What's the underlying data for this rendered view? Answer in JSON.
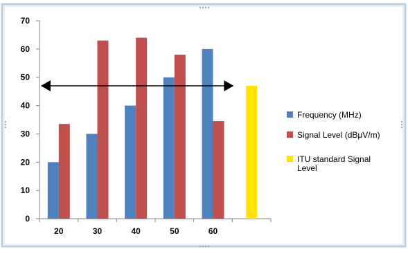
{
  "chart_data": {
    "type": "bar",
    "categories": [
      "20",
      "30",
      "40",
      "50",
      "60",
      ""
    ],
    "ylim": [
      0,
      70
    ],
    "yticks": [
      0,
      10,
      20,
      30,
      40,
      50,
      60,
      70
    ],
    "grid": false,
    "legend_position": "right",
    "series": [
      {
        "name": "Frequency (MHz)",
        "color": "#4f81bd",
        "values": [
          20,
          30,
          40,
          50,
          60,
          null
        ]
      },
      {
        "name": "Signal Level (dBμV/m)",
        "color": "#c0504d",
        "values": [
          33.5,
          63,
          64,
          58,
          34.5,
          null
        ]
      },
      {
        "name": "ITU standard Signal Level",
        "color": "#ffe400",
        "values": [
          null,
          null,
          null,
          null,
          null,
          47
        ]
      }
    ],
    "annotation": {
      "type": "double-arrow",
      "y": 47,
      "from_category": 0,
      "to_category": 5
    }
  }
}
